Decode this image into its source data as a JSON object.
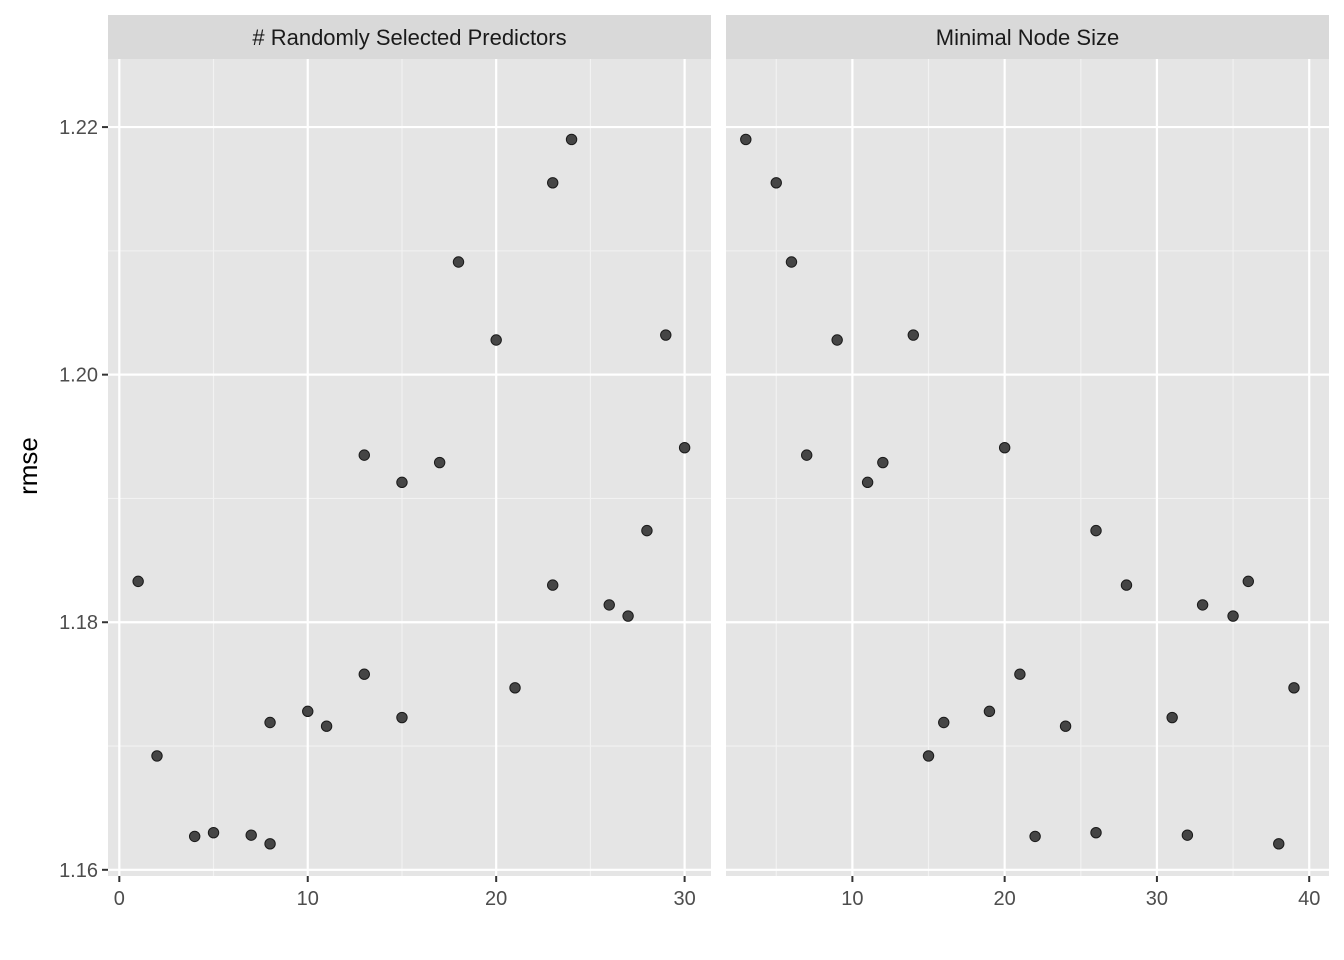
{
  "chart_data": {
    "type": "scatter",
    "ylabel": "rmse",
    "xlabel": "",
    "ylim": [
      1.1595,
      1.2255
    ],
    "y_ticks": [
      1.16,
      1.18,
      1.2,
      1.22
    ],
    "y_tick_labels": [
      "1.16",
      "1.18",
      "1.20",
      "1.22"
    ],
    "grid": true,
    "point_color": "#333333",
    "panel_background": "#e5e5e5",
    "strip_background": "#d9d9d9",
    "panels": [
      {
        "strip": "# Randomly Selected Predictors",
        "xlim": [
          -0.6,
          31.4
        ],
        "x_ticks": [
          0,
          10,
          20,
          30
        ],
        "x_tick_labels": [
          "0",
          "10",
          "20",
          "30"
        ],
        "points": [
          {
            "x": 1,
            "y": 1.1833
          },
          {
            "x": 2,
            "y": 1.1692
          },
          {
            "x": 4,
            "y": 1.1627
          },
          {
            "x": 5,
            "y": 1.163
          },
          {
            "x": 7,
            "y": 1.1628
          },
          {
            "x": 8,
            "y": 1.1621
          },
          {
            "x": 8,
            "y": 1.1719
          },
          {
            "x": 10,
            "y": 1.1728
          },
          {
            "x": 11,
            "y": 1.1716
          },
          {
            "x": 13,
            "y": 1.1935
          },
          {
            "x": 13,
            "y": 1.1758
          },
          {
            "x": 15,
            "y": 1.1913
          },
          {
            "x": 15,
            "y": 1.1723
          },
          {
            "x": 17,
            "y": 1.1929
          },
          {
            "x": 18,
            "y": 1.2091
          },
          {
            "x": 20,
            "y": 1.2028
          },
          {
            "x": 21,
            "y": 1.1747
          },
          {
            "x": 23,
            "y": 1.2155
          },
          {
            "x": 23,
            "y": 1.183
          },
          {
            "x": 24,
            "y": 1.219
          },
          {
            "x": 26,
            "y": 1.1814
          },
          {
            "x": 27,
            "y": 1.1805
          },
          {
            "x": 28,
            "y": 1.1874
          },
          {
            "x": 29,
            "y": 1.2032
          },
          {
            "x": 30,
            "y": 1.1941
          }
        ]
      },
      {
        "strip": "Minimal Node Size",
        "xlim": [
          1.7,
          41.3
        ],
        "x_ticks": [
          10,
          20,
          30,
          40
        ],
        "x_tick_labels": [
          "10",
          "20",
          "30",
          "40"
        ],
        "points": [
          {
            "x": 3,
            "y": 1.219
          },
          {
            "x": 5,
            "y": 1.2155
          },
          {
            "x": 6,
            "y": 1.2091
          },
          {
            "x": 7,
            "y": 1.1935
          },
          {
            "x": 9,
            "y": 1.2028
          },
          {
            "x": 11,
            "y": 1.1913
          },
          {
            "x": 12,
            "y": 1.1929
          },
          {
            "x": 14,
            "y": 1.2032
          },
          {
            "x": 15,
            "y": 1.1692
          },
          {
            "x": 16,
            "y": 1.1719
          },
          {
            "x": 19,
            "y": 1.1728
          },
          {
            "x": 20,
            "y": 1.1941
          },
          {
            "x": 21,
            "y": 1.1758
          },
          {
            "x": 22,
            "y": 1.1627
          },
          {
            "x": 24,
            "y": 1.1716
          },
          {
            "x": 26,
            "y": 1.1874
          },
          {
            "x": 26,
            "y": 1.163
          },
          {
            "x": 28,
            "y": 1.183
          },
          {
            "x": 31,
            "y": 1.1723
          },
          {
            "x": 32,
            "y": 1.1628
          },
          {
            "x": 33,
            "y": 1.1814
          },
          {
            "x": 35,
            "y": 1.1805
          },
          {
            "x": 36,
            "y": 1.1833
          },
          {
            "x": 38,
            "y": 1.1621
          },
          {
            "x": 39,
            "y": 1.1747
          }
        ]
      }
    ]
  }
}
